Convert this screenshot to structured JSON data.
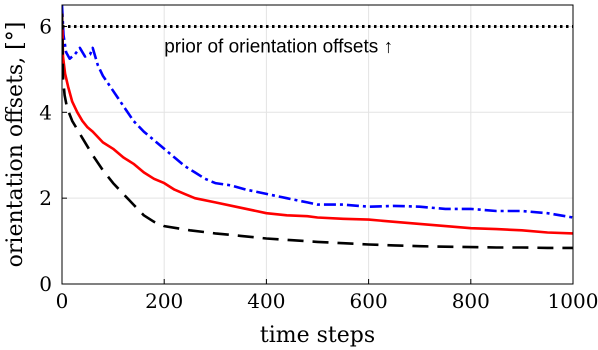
{
  "chart_data": {
    "type": "line",
    "xlabel": "time steps",
    "ylabel": "orientation offsets, [°]",
    "xlim": [
      0,
      1000
    ],
    "ylim": [
      0,
      6.5
    ],
    "x_ticks": [
      "0",
      "200",
      "400",
      "600",
      "800",
      "1000"
    ],
    "y_ticks": [
      "0",
      "2",
      "4",
      "6"
    ],
    "grid": true,
    "annotation": "prior of orientation offsets ↑",
    "series": [
      {
        "style": "dotted",
        "color": "#000000",
        "x": [
          0,
          1000
        ],
        "y": [
          6.0,
          6.0
        ]
      },
      {
        "style": "dash-dot",
        "color": "#0000ff",
        "x": [
          0,
          3,
          8,
          15,
          25,
          35,
          45,
          55,
          60,
          70,
          80,
          100,
          120,
          140,
          160,
          180,
          200,
          220,
          240,
          260,
          280,
          300,
          330,
          360,
          400,
          440,
          480,
          500,
          550,
          600,
          650,
          700,
          750,
          800,
          850,
          900,
          950,
          1000
        ],
        "y": [
          6.5,
          5.8,
          5.4,
          5.25,
          5.35,
          5.5,
          5.3,
          5.35,
          5.5,
          5.1,
          4.85,
          4.5,
          4.15,
          3.8,
          3.55,
          3.35,
          3.15,
          2.95,
          2.75,
          2.6,
          2.45,
          2.35,
          2.3,
          2.2,
          2.1,
          2.0,
          1.9,
          1.85,
          1.85,
          1.8,
          1.82,
          1.8,
          1.75,
          1.75,
          1.7,
          1.7,
          1.65,
          1.55
        ]
      },
      {
        "style": "solid",
        "color": "#ff0000",
        "x": [
          0,
          2,
          6,
          12,
          20,
          30,
          40,
          50,
          60,
          80,
          100,
          120,
          140,
          160,
          180,
          200,
          220,
          240,
          260,
          300,
          340,
          380,
          400,
          440,
          480,
          500,
          550,
          600,
          650,
          700,
          750,
          800,
          850,
          900,
          950,
          1000
        ],
        "y": [
          6.3,
          5.3,
          4.9,
          4.6,
          4.25,
          4.0,
          3.8,
          3.65,
          3.55,
          3.3,
          3.15,
          2.95,
          2.8,
          2.6,
          2.45,
          2.35,
          2.2,
          2.1,
          2.0,
          1.9,
          1.8,
          1.7,
          1.65,
          1.6,
          1.58,
          1.55,
          1.52,
          1.5,
          1.45,
          1.4,
          1.35,
          1.3,
          1.28,
          1.25,
          1.2,
          1.18
        ]
      },
      {
        "style": "dashed",
        "color": "#000000",
        "x": [
          0,
          2,
          5,
          10,
          20,
          40,
          60,
          80,
          100,
          120,
          140,
          160,
          180,
          200,
          250,
          300,
          350,
          400,
          450,
          500,
          550,
          600,
          650,
          700,
          750,
          800,
          850,
          900,
          950,
          1000
        ],
        "y": [
          6.3,
          4.8,
          4.4,
          4.1,
          3.8,
          3.4,
          3.0,
          2.65,
          2.35,
          2.1,
          1.85,
          1.6,
          1.45,
          1.35,
          1.25,
          1.18,
          1.12,
          1.06,
          1.02,
          0.98,
          0.95,
          0.92,
          0.9,
          0.88,
          0.87,
          0.86,
          0.85,
          0.85,
          0.84,
          0.84
        ]
      }
    ]
  }
}
